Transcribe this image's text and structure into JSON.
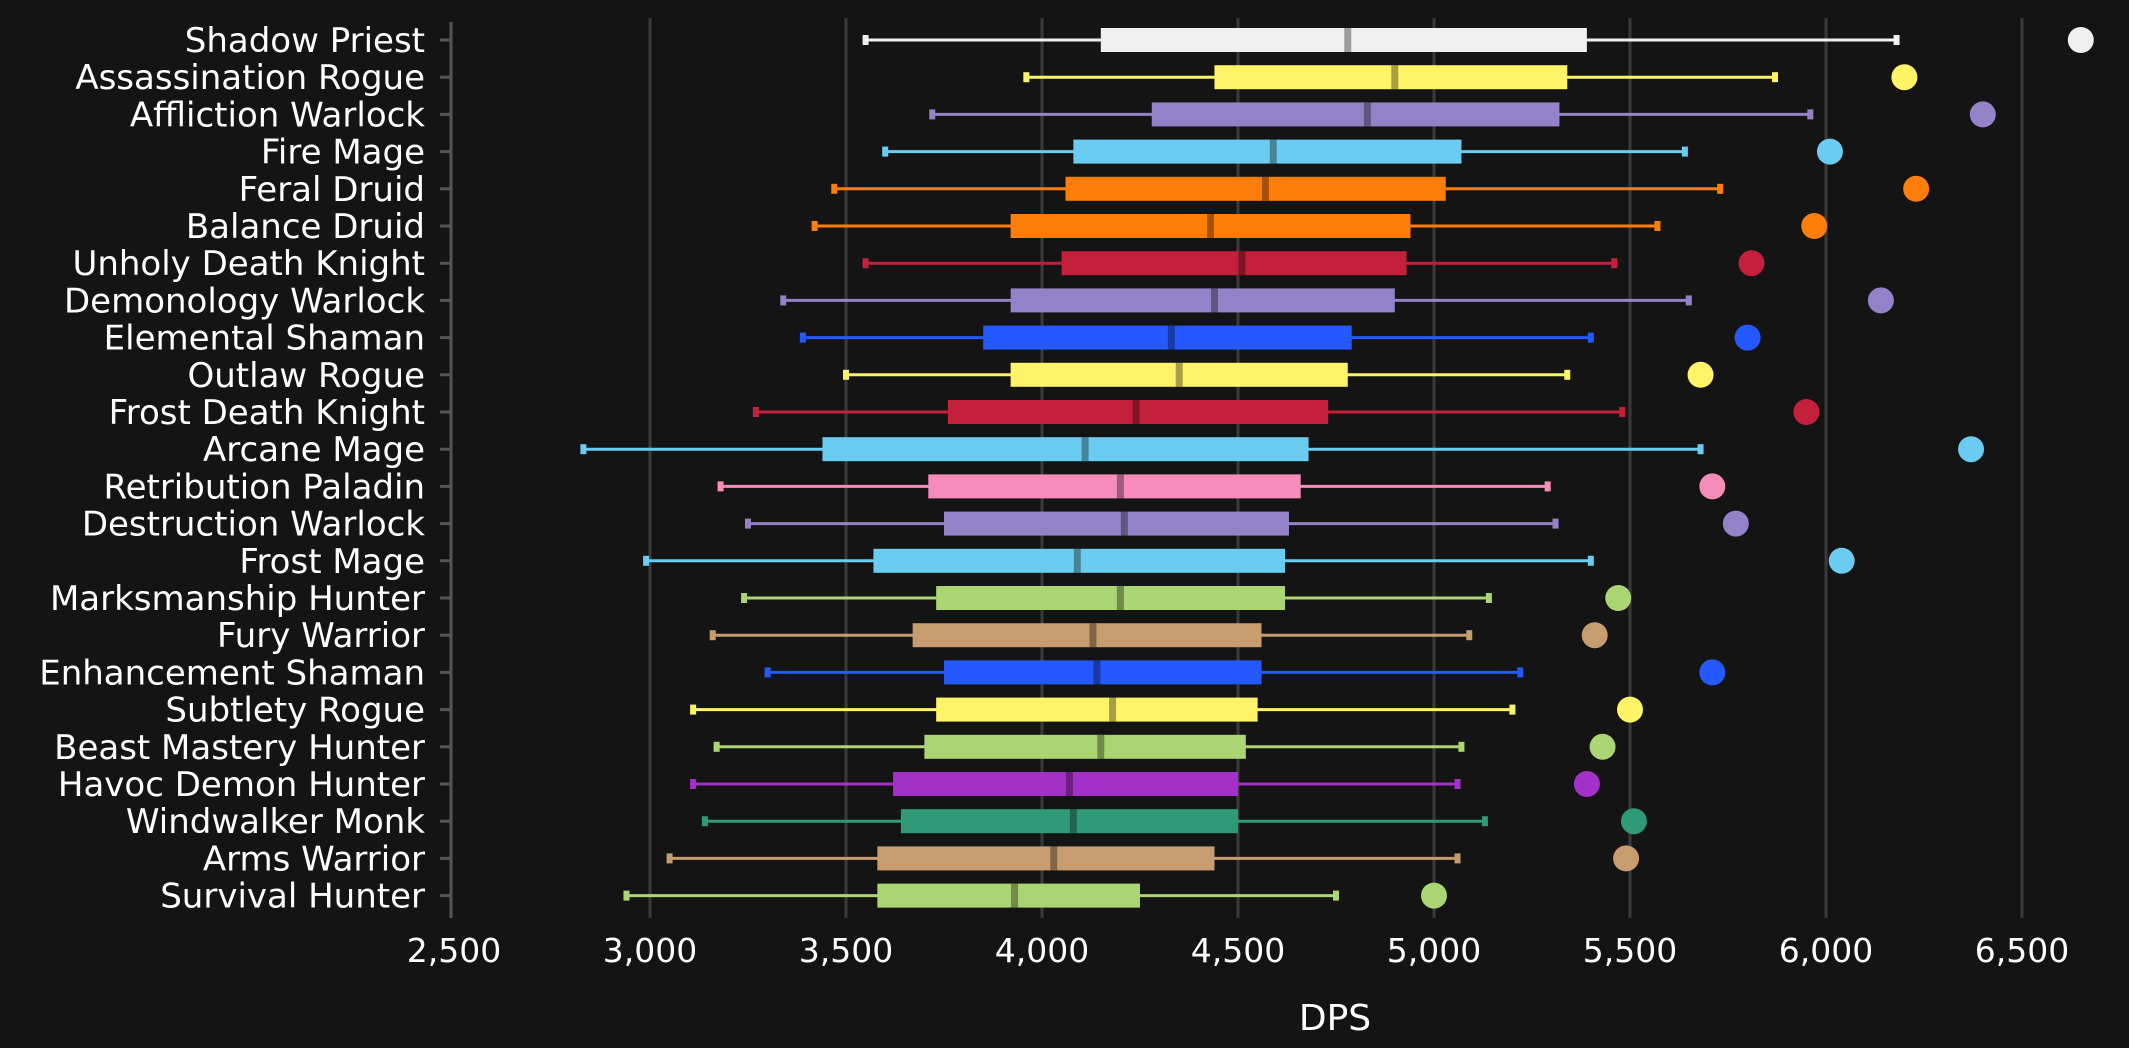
{
  "chart_data": {
    "type": "boxplot",
    "xlabel": "DPS",
    "ylabel": "",
    "title": "",
    "xlim": [
      2500,
      6650
    ],
    "xticks": [
      2500,
      3000,
      3500,
      4000,
      4500,
      5000,
      5500,
      6000,
      6500
    ],
    "xtick_labels": [
      "2,500",
      "3,000",
      "3,500",
      "4,000",
      "4,500",
      "5,000",
      "5,500",
      "6,000",
      "6,500"
    ],
    "grid": true,
    "categories": [
      {
        "name": "Shadow Priest",
        "color": "#f0f0f0",
        "min": 3550,
        "q1": 4150,
        "median": 4780,
        "q3": 5390,
        "max": 6180,
        "outlier": 6650
      },
      {
        "name": "Assassination Rogue",
        "color": "#fff468",
        "min": 3960,
        "q1": 4440,
        "median": 4900,
        "q3": 5340,
        "max": 5870,
        "outlier": 6200
      },
      {
        "name": "Affliction Warlock",
        "color": "#9482c9",
        "min": 3720,
        "q1": 4280,
        "median": 4830,
        "q3": 5320,
        "max": 5960,
        "outlier": 6400
      },
      {
        "name": "Fire Mage",
        "color": "#69ccf0",
        "min": 3600,
        "q1": 4080,
        "median": 4590,
        "q3": 5070,
        "max": 5640,
        "outlier": 6010
      },
      {
        "name": "Feral Druid",
        "color": "#ff7d0a",
        "min": 3470,
        "q1": 4060,
        "median": 4570,
        "q3": 5030,
        "max": 5730,
        "outlier": 6230
      },
      {
        "name": "Balance Druid",
        "color": "#ff7d0a",
        "min": 3420,
        "q1": 3920,
        "median": 4430,
        "q3": 4940,
        "max": 5570,
        "outlier": 5970
      },
      {
        "name": "Unholy Death Knight",
        "color": "#c41f3b",
        "min": 3550,
        "q1": 4050,
        "median": 4510,
        "q3": 4930,
        "max": 5460,
        "outlier": 5810
      },
      {
        "name": "Demonology Warlock",
        "color": "#9482c9",
        "min": 3340,
        "q1": 3920,
        "median": 4440,
        "q3": 4900,
        "max": 5650,
        "outlier": 6140
      },
      {
        "name": "Elemental Shaman",
        "color": "#2459ff",
        "min": 3390,
        "q1": 3850,
        "median": 4330,
        "q3": 4790,
        "max": 5400,
        "outlier": 5800
      },
      {
        "name": "Outlaw Rogue",
        "color": "#fff468",
        "min": 3500,
        "q1": 3920,
        "median": 4350,
        "q3": 4780,
        "max": 5340,
        "outlier": 5680
      },
      {
        "name": "Frost Death Knight",
        "color": "#c41f3b",
        "min": 3270,
        "q1": 3760,
        "median": 4240,
        "q3": 4730,
        "max": 5480,
        "outlier": 5950
      },
      {
        "name": "Arcane Mage",
        "color": "#69ccf0",
        "min": 2830,
        "q1": 3440,
        "median": 4110,
        "q3": 4680,
        "max": 5680,
        "outlier": 6370
      },
      {
        "name": "Retribution Paladin",
        "color": "#f58cba",
        "min": 3180,
        "q1": 3710,
        "median": 4200,
        "q3": 4660,
        "max": 5290,
        "outlier": 5710
      },
      {
        "name": "Destruction Warlock",
        "color": "#9482c9",
        "min": 3250,
        "q1": 3750,
        "median": 4210,
        "q3": 4630,
        "max": 5310,
        "outlier": 5770
      },
      {
        "name": "Frost Mage",
        "color": "#69ccf0",
        "min": 2990,
        "q1": 3570,
        "median": 4090,
        "q3": 4620,
        "max": 5400,
        "outlier": 6040
      },
      {
        "name": "Marksmanship Hunter",
        "color": "#abd473",
        "min": 3240,
        "q1": 3730,
        "median": 4200,
        "q3": 4620,
        "max": 5140,
        "outlier": 5470
      },
      {
        "name": "Fury Warrior",
        "color": "#c79c6e",
        "min": 3160,
        "q1": 3670,
        "median": 4130,
        "q3": 4560,
        "max": 5090,
        "outlier": 5410
      },
      {
        "name": "Enhancement Shaman",
        "color": "#2459ff",
        "min": 3300,
        "q1": 3750,
        "median": 4140,
        "q3": 4560,
        "max": 5220,
        "outlier": 5710
      },
      {
        "name": "Subtlety Rogue",
        "color": "#fff468",
        "min": 3110,
        "q1": 3730,
        "median": 4180,
        "q3": 4550,
        "max": 5200,
        "outlier": 5500
      },
      {
        "name": "Beast Mastery Hunter",
        "color": "#abd473",
        "min": 3170,
        "q1": 3700,
        "median": 4150,
        "q3": 4520,
        "max": 5070,
        "outlier": 5430
      },
      {
        "name": "Havoc Demon Hunter",
        "color": "#a330c9",
        "min": 3110,
        "q1": 3620,
        "median": 4070,
        "q3": 4500,
        "max": 5060,
        "outlier": 5390
      },
      {
        "name": "Windwalker Monk",
        "color": "#2e9a78",
        "min": 3140,
        "q1": 3640,
        "median": 4080,
        "q3": 4500,
        "max": 5130,
        "outlier": 5510
      },
      {
        "name": "Arms Warrior",
        "color": "#c79c6e",
        "min": 3050,
        "q1": 3580,
        "median": 4030,
        "q3": 4440,
        "max": 5060,
        "outlier": 5490
      },
      {
        "name": "Survival Hunter",
        "color": "#abd473",
        "min": 2940,
        "q1": 3580,
        "median": 3930,
        "q3": 4250,
        "max": 4750,
        "outlier": 5000
      }
    ]
  }
}
